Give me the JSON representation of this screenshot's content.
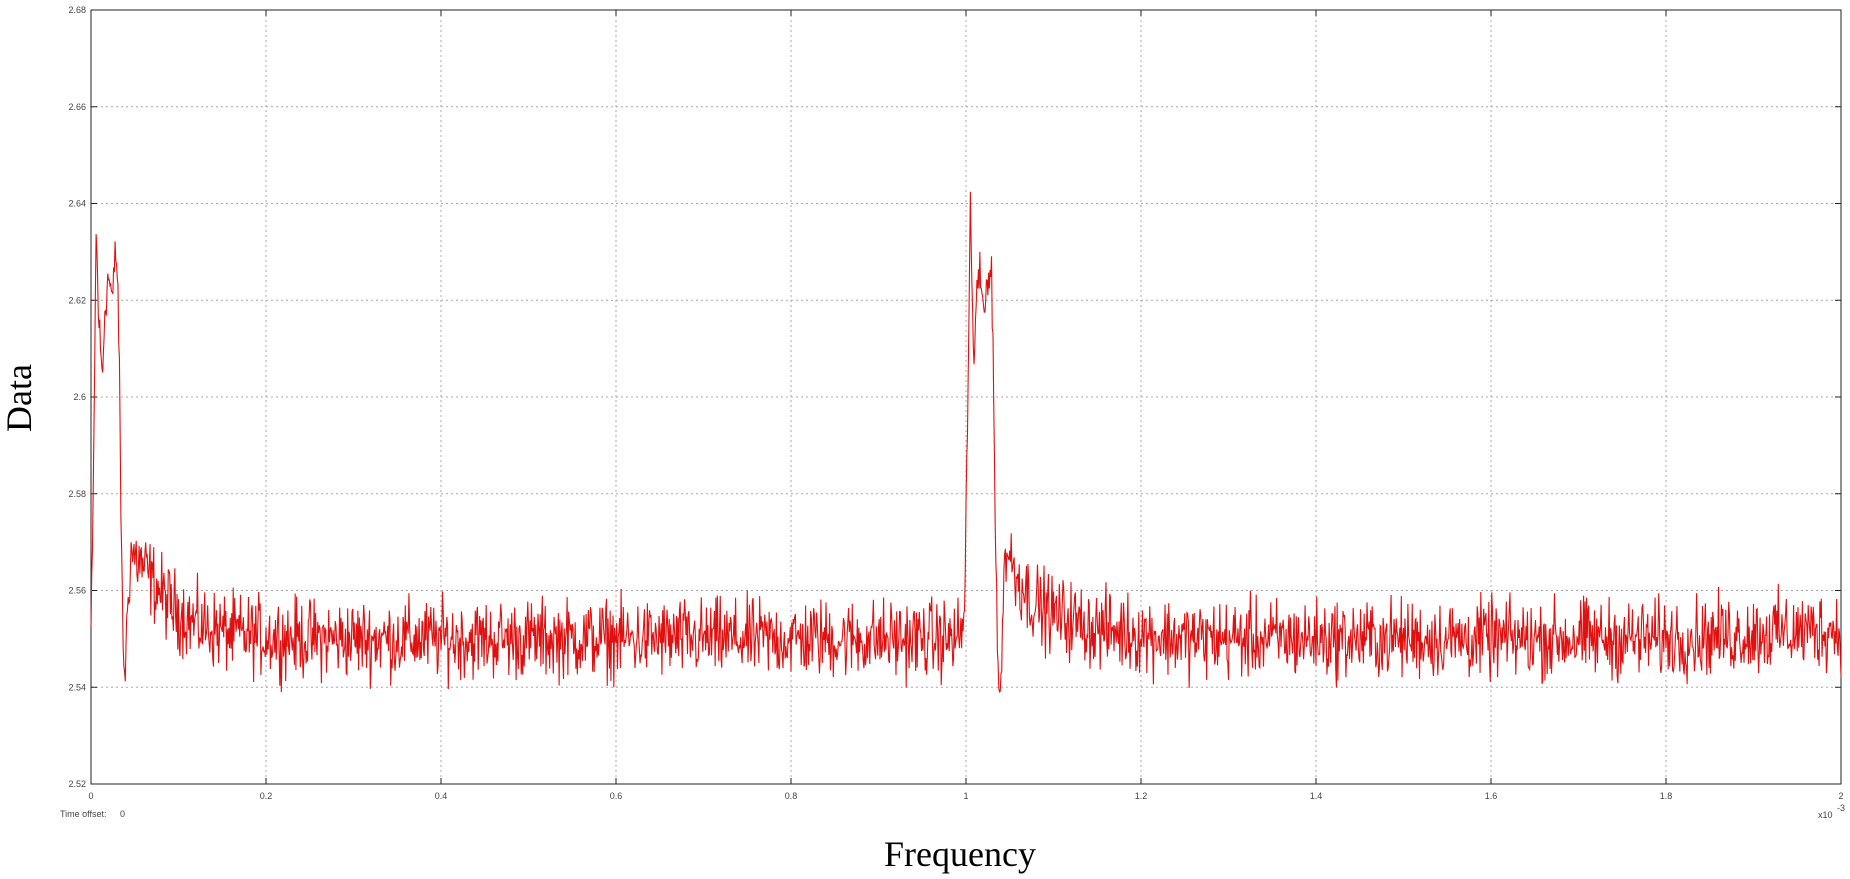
{
  "chart_data": {
    "type": "line",
    "xlabel": "Frequency",
    "ylabel": "Data",
    "xlim": [
      0,
      2
    ],
    "ylim": [
      2.52,
      2.68
    ],
    "x_ticks": [
      "0",
      "0.2",
      "0.4",
      "0.6",
      "0.8",
      "1",
      "1.2",
      "1.4",
      "1.6",
      "1.8",
      "2"
    ],
    "y_ticks": [
      "2.52",
      "2.54",
      "2.56",
      "2.58",
      "2.6",
      "2.62",
      "2.64",
      "2.66",
      "2.68"
    ],
    "x_scale_note": "x10",
    "x_scale_exp": "-3",
    "time_offset_label": "Time offset:",
    "time_offset_value": "0",
    "grid": true,
    "line_color": "#e01010",
    "series": [
      {
        "baseline": 2.55,
        "noise_amplitude": 0.006,
        "points": [
          [
            0,
            2.552
          ],
          [
            0.002,
            2.57
          ],
          [
            0.004,
            2.604
          ],
          [
            0.006,
            2.636
          ],
          [
            0.008,
            2.62
          ],
          [
            0.011,
            2.609
          ],
          [
            0.013,
            2.604
          ],
          [
            0.016,
            2.619
          ],
          [
            0.02,
            2.625
          ],
          [
            0.025,
            2.62
          ],
          [
            0.028,
            2.631
          ],
          [
            0.031,
            2.622
          ],
          [
            0.033,
            2.596
          ],
          [
            0.035,
            2.566
          ],
          [
            0.037,
            2.546
          ],
          [
            0.039,
            2.543
          ],
          [
            0.041,
            2.553
          ],
          [
            0.045,
            2.568
          ],
          [
            0.055,
            2.566
          ],
          [
            0.07,
            2.562
          ],
          [
            0.09,
            2.557
          ],
          [
            0.12,
            2.553
          ],
          [
            0.16,
            2.551
          ],
          [
            0.25,
            2.55
          ],
          [
            0.4,
            2.55
          ],
          [
            0.6,
            2.55
          ],
          [
            0.8,
            2.55
          ],
          [
            0.99,
            2.55
          ],
          [
            0.998,
            2.553
          ],
          [
            1.0,
            2.576
          ],
          [
            1.003,
            2.61
          ],
          [
            1.005,
            2.64
          ],
          [
            1.007,
            2.618
          ],
          [
            1.009,
            2.608
          ],
          [
            1.012,
            2.622
          ],
          [
            1.016,
            2.624
          ],
          [
            1.021,
            2.617
          ],
          [
            1.025,
            2.626
          ],
          [
            1.029,
            2.627
          ],
          [
            1.031,
            2.61
          ],
          [
            1.033,
            2.58
          ],
          [
            1.035,
            2.556
          ],
          [
            1.037,
            2.542
          ],
          [
            1.039,
            2.536
          ],
          [
            1.041,
            2.55
          ],
          [
            1.044,
            2.566
          ],
          [
            1.047,
            2.569
          ],
          [
            1.055,
            2.564
          ],
          [
            1.075,
            2.558
          ],
          [
            1.1,
            2.555
          ],
          [
            1.15,
            2.552
          ],
          [
            1.25,
            2.55
          ],
          [
            1.5,
            2.55
          ],
          [
            1.8,
            2.55
          ],
          [
            2.0,
            2.552
          ]
        ]
      }
    ]
  }
}
